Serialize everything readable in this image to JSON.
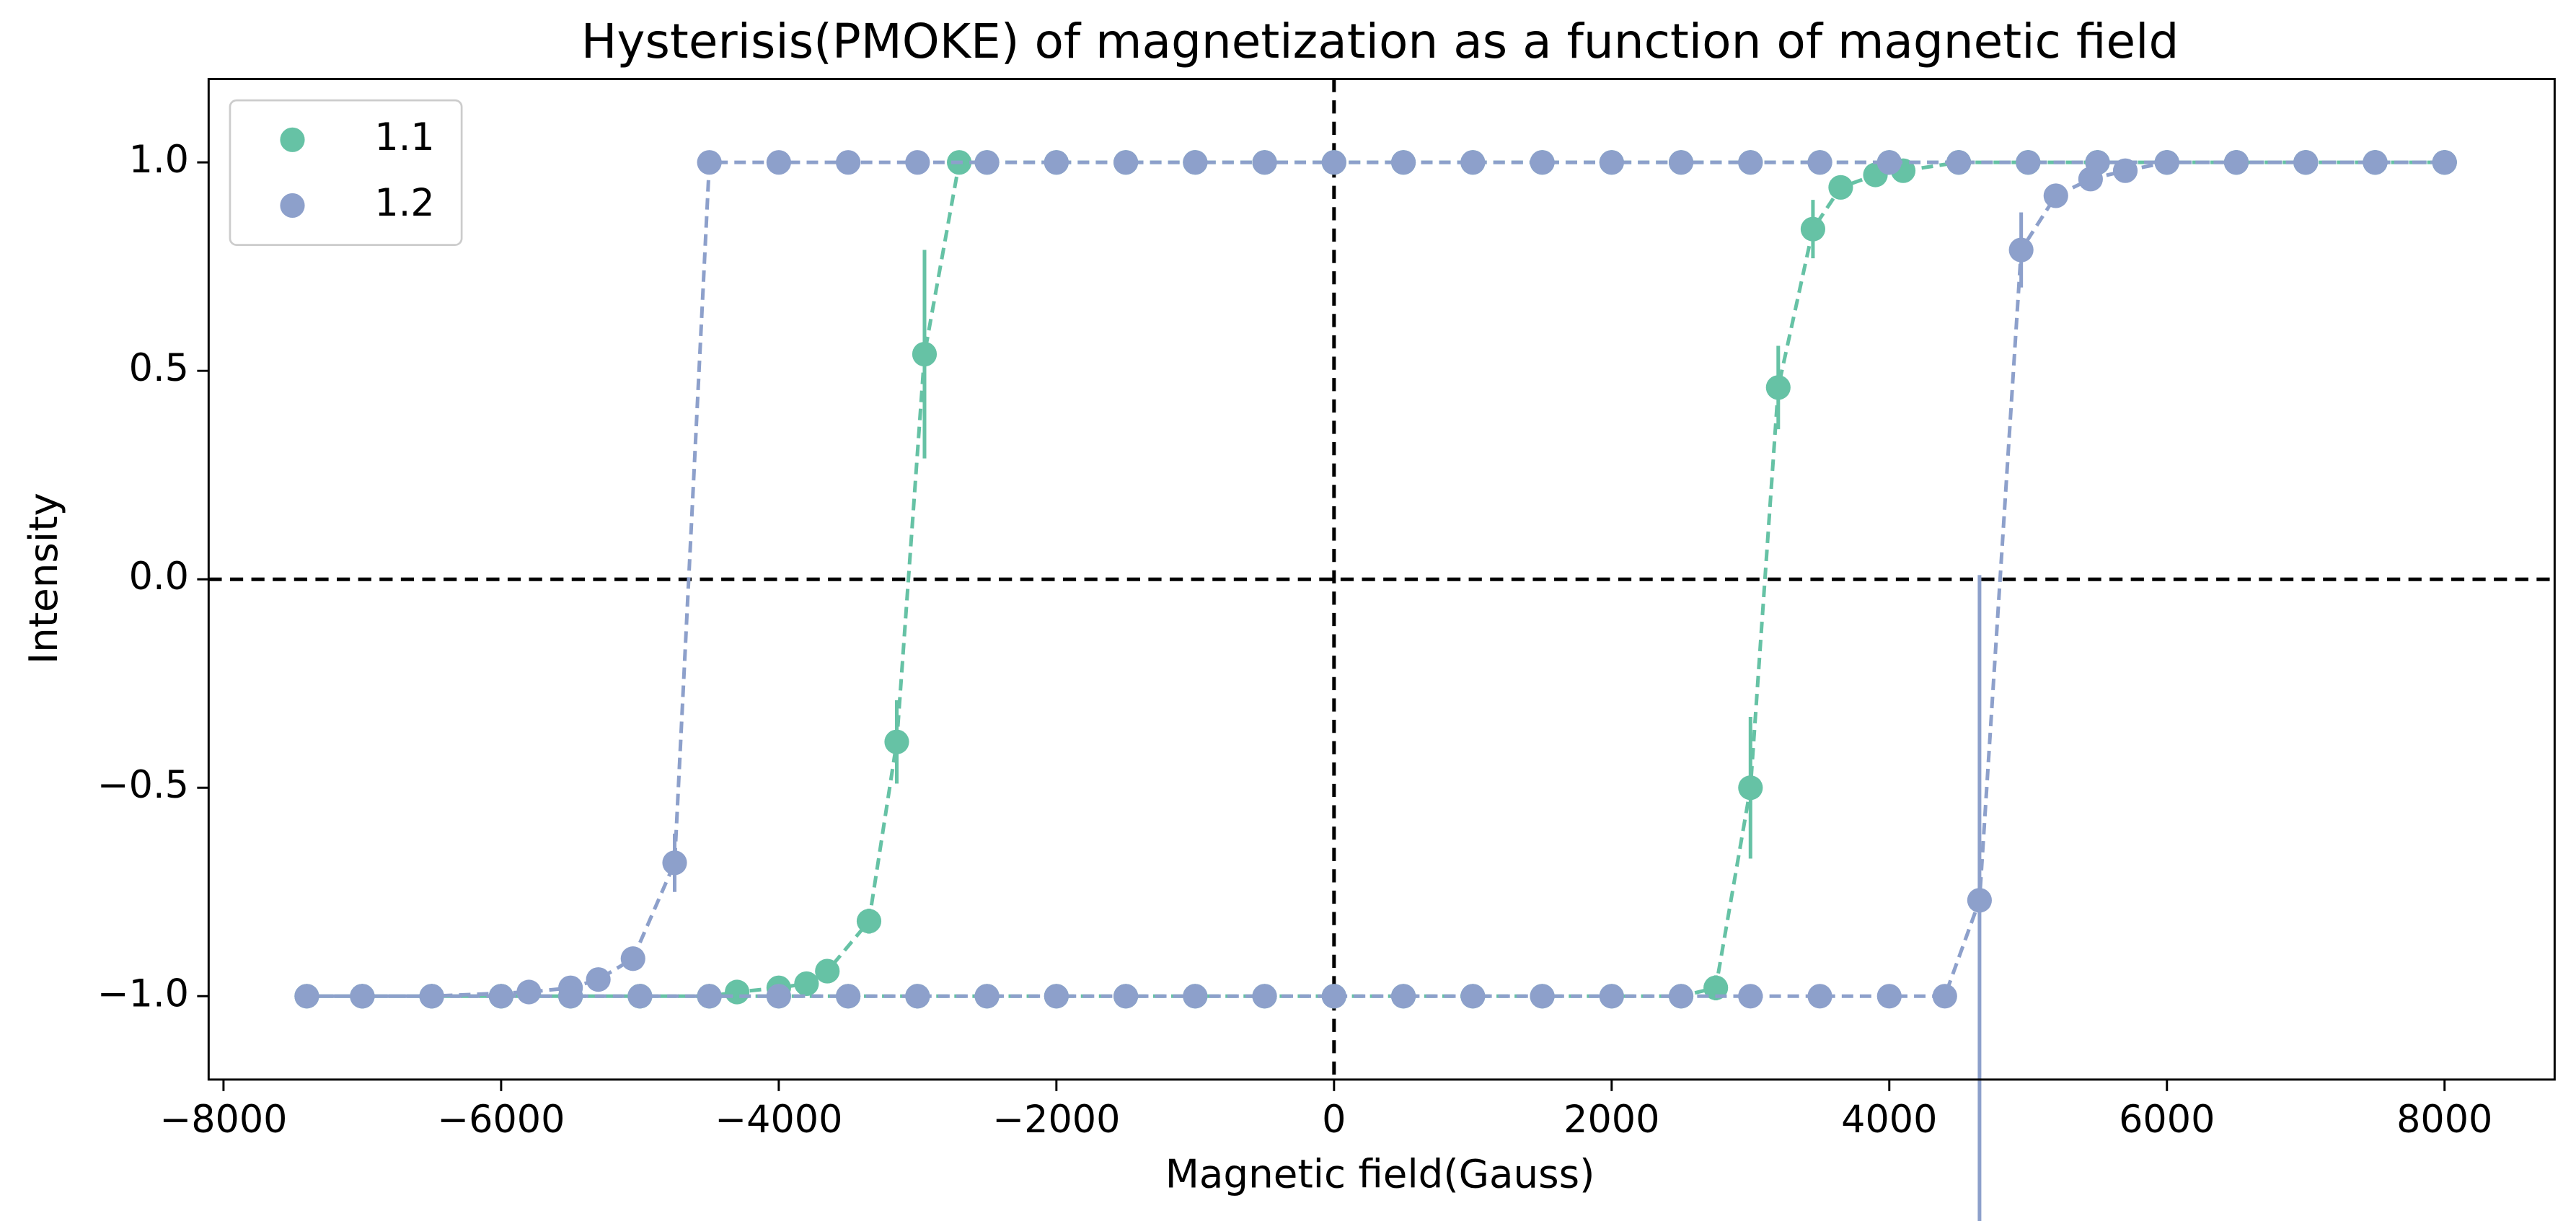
{
  "chart_data": {
    "type": "scatter",
    "title": "Hysterisis(PMOKE) of magnetization as a function of magnetic field",
    "x_label": "Magnetic field(Gauss)",
    "y_label": "Intensity",
    "xlim": [
      -8107,
      8793
    ],
    "ylim": [
      -1.2,
      1.2
    ],
    "xticks": [
      {
        "value": -8000,
        "label": "−8000"
      },
      {
        "value": -6000,
        "label": "−6000"
      },
      {
        "value": -4000,
        "label": "−4000"
      },
      {
        "value": -2000,
        "label": "−2000"
      },
      0,
      2000,
      4000,
      6000,
      8000
    ],
    "yticks": [
      {
        "value": -1.0,
        "label": "−1.0"
      },
      {
        "value": -0.5,
        "label": "−0.5"
      },
      {
        "value": 0.0,
        "label": "0.0"
      },
      {
        "value": 0.5,
        "label": "0.5"
      },
      {
        "value": 1.0,
        "label": "1.0"
      }
    ],
    "hlines": [
      0
    ],
    "vlines": [
      0
    ],
    "legend": "upper left",
    "series": [
      {
        "name": "1.1",
        "color": "#66c2a5",
        "x": [
          8000,
          7500,
          7000,
          6500,
          6000,
          5500,
          5000,
          4500,
          4000,
          3500,
          3000,
          2500,
          2000,
          1500,
          1000,
          500,
          0,
          -500,
          -1000,
          -1500,
          -2000,
          -2500,
          -2700,
          -2950,
          -3150,
          -3350,
          -3650,
          -3800,
          -4000,
          -4300,
          -4500,
          -5000,
          -5500,
          -6000,
          -6500,
          -7000,
          -7400,
          -7000,
          -6500,
          -6000,
          -5500,
          -5000,
          -4500,
          -4000,
          -3500,
          -3000,
          -2500,
          -2000,
          -1500,
          -1000,
          -500,
          0,
          500,
          1000,
          1500,
          2000,
          2500,
          2750,
          3000,
          3200,
          3450,
          3650,
          3900,
          4100,
          4500,
          5000,
          5500,
          6000,
          6500,
          7000,
          7500,
          8000
        ],
        "values": [
          1,
          1,
          1,
          1,
          1,
          1,
          1,
          1,
          1,
          1,
          1,
          1,
          1,
          1,
          1,
          1,
          1,
          1,
          1,
          1,
          1,
          1,
          1,
          0.54,
          -0.39,
          -0.82,
          -0.94,
          -0.97,
          -0.98,
          -0.99,
          -1,
          -1,
          -1,
          -1,
          -1,
          -1,
          -1,
          -1,
          -1,
          -1,
          -1,
          -1,
          -1,
          -1,
          -1,
          -1,
          -1,
          -1,
          -1,
          -1,
          -1,
          -1,
          -1,
          -1,
          -1,
          -1,
          -1,
          -0.98,
          -0.5,
          0.46,
          0.84,
          0.94,
          0.97,
          0.98,
          1,
          1,
          1,
          1,
          1,
          1,
          1,
          1
        ],
        "errors": [
          0,
          0,
          0,
          0,
          0,
          0,
          0,
          0,
          0,
          0,
          0,
          0,
          0,
          0,
          0,
          0,
          0,
          0,
          0,
          0,
          0,
          0,
          0,
          0.25,
          0.1,
          0.03,
          0,
          0,
          0,
          0,
          0,
          0,
          0,
          0,
          0,
          0,
          0,
          0,
          0,
          0,
          0,
          0,
          0,
          0,
          0,
          0,
          0,
          0,
          0,
          0,
          0,
          0,
          0,
          0,
          0,
          0,
          0,
          0.03,
          0.17,
          0.1,
          0.07,
          0,
          0,
          0,
          0,
          0,
          0,
          0,
          0,
          0,
          0,
          0
        ]
      },
      {
        "name": "1.2",
        "color": "#8da0cb",
        "x": [
          8000,
          7500,
          7000,
          6500,
          6000,
          5500,
          5000,
          4500,
          4000,
          3500,
          3000,
          2500,
          2000,
          1500,
          1000,
          500,
          0,
          -500,
          -1000,
          -1500,
          -2000,
          -2500,
          -3000,
          -3500,
          -4000,
          -4500,
          -4750,
          -5050,
          -5300,
          -5500,
          -5800,
          -6500,
          -7000,
          -7400,
          -7000,
          -6500,
          -6000,
          -5500,
          -5000,
          -4500,
          -4000,
          -3500,
          -3000,
          -2500,
          -2000,
          -1500,
          -1000,
          -500,
          0,
          500,
          1000,
          1500,
          2000,
          2500,
          3000,
          3500,
          4000,
          4400,
          4650,
          4950,
          5200,
          5450,
          5700,
          6000,
          6500,
          7000,
          7500,
          8000
        ],
        "values": [
          1,
          1,
          1,
          1,
          1,
          1,
          1,
          1,
          1,
          1,
          1,
          1,
          1,
          1,
          1,
          1,
          1,
          1,
          1,
          1,
          1,
          1,
          1,
          1,
          1,
          1,
          -0.68,
          -0.91,
          -0.96,
          -0.98,
          -0.99,
          -1,
          -1,
          -1,
          -1,
          -1,
          -1,
          -1,
          -1,
          -1,
          -1,
          -1,
          -1,
          -1,
          -1,
          -1,
          -1,
          -1,
          -1,
          -1,
          -1,
          -1,
          -1,
          -1,
          -1,
          -1,
          -1,
          -1,
          -0.77,
          0.79,
          0.92,
          0.96,
          0.98,
          1,
          1,
          1,
          1,
          1
        ],
        "errors": [
          0,
          0,
          0,
          0,
          0,
          0,
          0,
          0,
          0,
          0,
          0,
          0,
          0,
          0,
          0,
          0,
          0,
          0,
          0,
          0,
          0,
          0,
          0,
          0,
          0,
          0,
          0.07,
          0,
          0,
          0,
          0,
          0,
          0,
          0,
          0,
          0,
          0,
          0,
          0,
          0,
          0,
          0,
          0,
          0,
          0,
          0,
          0,
          0,
          0,
          0,
          0,
          0,
          0,
          0,
          0,
          0,
          0,
          0,
          0.78,
          0.09,
          0,
          0,
          0,
          0,
          0,
          0,
          0,
          0
        ]
      }
    ]
  }
}
